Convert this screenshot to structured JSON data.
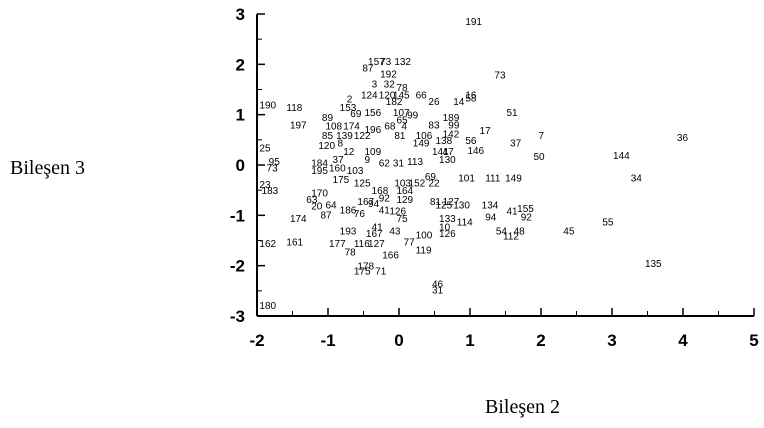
{
  "chart_data": {
    "type": "scatter",
    "title": "",
    "xlabel": "Bileşen 2",
    "ylabel": "Bileşen 3",
    "xlim": [
      -2,
      5
    ],
    "ylim": [
      -3,
      3
    ],
    "xticks": [
      "-2",
      "-1",
      "0",
      "1",
      "2",
      "3",
      "4",
      "5"
    ],
    "yticks": [
      "-3",
      "-2",
      "-1",
      "0",
      "1",
      "2",
      "3"
    ],
    "grid": false,
    "legend": "none",
    "points": [
      {
        "label": "191",
        "x": 0.92,
        "y": 2.86
      },
      {
        "label": "157",
        "x": -0.45,
        "y": 2.07
      },
      {
        "label": "73",
        "x": -0.28,
        "y": 2.07
      },
      {
        "label": "132",
        "x": -0.08,
        "y": 2.07
      },
      {
        "label": "87",
        "x": -0.53,
        "y": 1.94
      },
      {
        "label": "192",
        "x": -0.28,
        "y": 1.82
      },
      {
        "label": "73",
        "x": 1.33,
        "y": 1.8
      },
      {
        "label": "3",
        "x": -0.4,
        "y": 1.62
      },
      {
        "label": "32",
        "x": -0.23,
        "y": 1.62
      },
      {
        "label": "78",
        "x": -0.05,
        "y": 1.55
      },
      {
        "label": "124",
        "x": -0.55,
        "y": 1.4
      },
      {
        "label": "120",
        "x": -0.3,
        "y": 1.4
      },
      {
        "label": "145",
        "x": -0.1,
        "y": 1.4
      },
      {
        "label": "66",
        "x": 0.22,
        "y": 1.4
      },
      {
        "label": "2",
        "x": -0.75,
        "y": 1.32
      },
      {
        "label": "182",
        "x": -0.2,
        "y": 1.27
      },
      {
        "label": "26",
        "x": 0.4,
        "y": 1.27
      },
      {
        "label": "14",
        "x": 0.75,
        "y": 1.27
      },
      {
        "label": "16",
        "x": 0.92,
        "y": 1.4
      },
      {
        "label": "58",
        "x": 0.92,
        "y": 1.34
      },
      {
        "label": "190",
        "x": -1.98,
        "y": 1.2
      },
      {
        "label": "118",
        "x": -1.6,
        "y": 1.15
      },
      {
        "label": "153",
        "x": -0.85,
        "y": 1.15
      },
      {
        "label": "156",
        "x": -0.5,
        "y": 1.05
      },
      {
        "label": "69",
        "x": -0.7,
        "y": 1.03
      },
      {
        "label": "107",
        "x": -0.1,
        "y": 1.05
      },
      {
        "label": "51",
        "x": 1.5,
        "y": 1.05
      },
      {
        "label": "89",
        "x": -1.1,
        "y": 0.95
      },
      {
        "label": "99",
        "x": 0.1,
        "y": 1.0
      },
      {
        "label": "189",
        "x": 0.6,
        "y": 0.95
      },
      {
        "label": "65",
        "x": -0.05,
        "y": 0.9
      },
      {
        "label": "83",
        "x": 0.4,
        "y": 0.8
      },
      {
        "label": "99",
        "x": 0.68,
        "y": 0.8
      },
      {
        "label": "197",
        "x": -1.55,
        "y": 0.8
      },
      {
        "label": "108",
        "x": -1.05,
        "y": 0.78
      },
      {
        "label": "174",
        "x": -0.8,
        "y": 0.78
      },
      {
        "label": "196",
        "x": -0.5,
        "y": 0.72
      },
      {
        "label": "68",
        "x": -0.22,
        "y": 0.78
      },
      {
        "label": "4",
        "x": 0.02,
        "y": 0.78
      },
      {
        "label": "17",
        "x": 1.12,
        "y": 0.7
      },
      {
        "label": "7",
        "x": 1.95,
        "y": 0.6
      },
      {
        "label": "36",
        "x": 3.9,
        "y": 0.56
      },
      {
        "label": "85",
        "x": -1.1,
        "y": 0.6
      },
      {
        "label": "139",
        "x": -0.9,
        "y": 0.6
      },
      {
        "label": "122",
        "x": -0.65,
        "y": 0.6
      },
      {
        "label": "81",
        "x": -0.08,
        "y": 0.6
      },
      {
        "label": "106",
        "x": 0.22,
        "y": 0.6
      },
      {
        "label": "142",
        "x": 0.6,
        "y": 0.63
      },
      {
        "label": "138",
        "x": 0.5,
        "y": 0.5
      },
      {
        "label": "56",
        "x": 0.92,
        "y": 0.5
      },
      {
        "label": "37",
        "x": 1.55,
        "y": 0.45
      },
      {
        "label": "120",
        "x": -1.15,
        "y": 0.4
      },
      {
        "label": "8",
        "x": -0.88,
        "y": 0.45
      },
      {
        "label": "149",
        "x": 0.18,
        "y": 0.45
      },
      {
        "label": "25",
        "x": -1.98,
        "y": 0.35
      },
      {
        "label": "12",
        "x": -0.8,
        "y": 0.28
      },
      {
        "label": "109",
        "x": -0.5,
        "y": 0.28
      },
      {
        "label": "146",
        "x": 0.95,
        "y": 0.3
      },
      {
        "label": "141",
        "x": 0.45,
        "y": 0.28
      },
      {
        "label": "47",
        "x": 0.6,
        "y": 0.28
      },
      {
        "label": "50",
        "x": 1.88,
        "y": 0.18
      },
      {
        "label": "144",
        "x": 3.0,
        "y": 0.2
      },
      {
        "label": "95",
        "x": -1.85,
        "y": 0.08
      },
      {
        "label": "184",
        "x": -1.25,
        "y": 0.05
      },
      {
        "label": "37",
        "x": -0.95,
        "y": 0.12
      },
      {
        "label": "9",
        "x": -0.5,
        "y": 0.12
      },
      {
        "label": "62",
        "x": -0.3,
        "y": 0.05
      },
      {
        "label": "31",
        "x": -0.1,
        "y": 0.05
      },
      {
        "label": "113",
        "x": 0.1,
        "y": 0.08
      },
      {
        "label": "130",
        "x": 0.55,
        "y": 0.12
      },
      {
        "label": "73",
        "x": -1.88,
        "y": -0.05
      },
      {
        "label": "195",
        "x": -1.25,
        "y": -0.1
      },
      {
        "label": "160",
        "x": -1.0,
        "y": -0.05
      },
      {
        "label": "103",
        "x": -0.75,
        "y": -0.1
      },
      {
        "label": "69",
        "x": 0.35,
        "y": -0.22
      },
      {
        "label": "101",
        "x": 0.82,
        "y": -0.25
      },
      {
        "label": "111",
        "x": 1.2,
        "y": -0.25
      },
      {
        "label": "149",
        "x": 1.48,
        "y": -0.25
      },
      {
        "label": "34",
        "x": 3.25,
        "y": -0.25
      },
      {
        "label": "23",
        "x": -1.98,
        "y": -0.38
      },
      {
        "label": "183",
        "x": -1.95,
        "y": -0.5
      },
      {
        "label": "175",
        "x": -0.95,
        "y": -0.28
      },
      {
        "label": "125",
        "x": -0.65,
        "y": -0.35
      },
      {
        "label": "103",
        "x": -0.08,
        "y": -0.35
      },
      {
        "label": "152",
        "x": 0.12,
        "y": -0.35
      },
      {
        "label": "22",
        "x": 0.4,
        "y": -0.35
      },
      {
        "label": "168",
        "x": -0.4,
        "y": -0.5
      },
      {
        "label": "164",
        "x": -0.05,
        "y": -0.5
      },
      {
        "label": "170",
        "x": -1.25,
        "y": -0.55
      },
      {
        "label": "63",
        "x": -1.32,
        "y": -0.68
      },
      {
        "label": "92",
        "x": -0.3,
        "y": -0.65
      },
      {
        "label": "129",
        "x": -0.05,
        "y": -0.68
      },
      {
        "label": "81",
        "x": 0.42,
        "y": -0.72
      },
      {
        "label": "127",
        "x": 0.6,
        "y": -0.72
      },
      {
        "label": "125",
        "x": 0.5,
        "y": -0.78
      },
      {
        "label": "130",
        "x": 0.75,
        "y": -0.78
      },
      {
        "label": "134",
        "x": 1.15,
        "y": -0.78
      },
      {
        "label": "20",
        "x": -1.25,
        "y": -0.8
      },
      {
        "label": "64",
        "x": -1.05,
        "y": -0.78
      },
      {
        "label": "167",
        "x": -0.6,
        "y": -0.72
      },
      {
        "label": "94",
        "x": -0.45,
        "y": -0.75
      },
      {
        "label": "41",
        "x": -0.3,
        "y": -0.88
      },
      {
        "label": "186",
        "x": -0.85,
        "y": -0.88
      },
      {
        "label": "76",
        "x": -0.65,
        "y": -0.95
      },
      {
        "label": "87",
        "x": -1.12,
        "y": -0.98
      },
      {
        "label": "126",
        "x": -0.15,
        "y": -0.9
      },
      {
        "label": "155",
        "x": 1.65,
        "y": -0.85
      },
      {
        "label": "41",
        "x": 1.5,
        "y": -0.9
      },
      {
        "label": "174",
        "x": -1.55,
        "y": -1.05
      },
      {
        "label": "75",
        "x": -0.05,
        "y": -1.05
      },
      {
        "label": "133",
        "x": 0.55,
        "y": -1.05
      },
      {
        "label": "114",
        "x": 0.8,
        "y": -1.12
      },
      {
        "label": "94",
        "x": 1.2,
        "y": -1.02
      },
      {
        "label": "92",
        "x": 1.7,
        "y": -1.02
      },
      {
        "label": "55",
        "x": 2.85,
        "y": -1.12
      },
      {
        "label": "10",
        "x": 0.55,
        "y": -1.22
      },
      {
        "label": "45",
        "x": 2.3,
        "y": -1.3
      },
      {
        "label": "193",
        "x": -0.85,
        "y": -1.3
      },
      {
        "label": "41",
        "x": -0.4,
        "y": -1.22
      },
      {
        "label": "167",
        "x": -0.48,
        "y": -1.35
      },
      {
        "label": "43",
        "x": -0.15,
        "y": -1.3
      },
      {
        "label": "100",
        "x": 0.22,
        "y": -1.38
      },
      {
        "label": "126",
        "x": 0.55,
        "y": -1.35
      },
      {
        "label": "54",
        "x": 1.35,
        "y": -1.3
      },
      {
        "label": "48",
        "x": 1.6,
        "y": -1.3
      },
      {
        "label": "112",
        "x": 1.45,
        "y": -1.4
      },
      {
        "label": "162",
        "x": -1.98,
        "y": -1.55
      },
      {
        "label": "161",
        "x": -1.6,
        "y": -1.52
      },
      {
        "label": "177",
        "x": -1.0,
        "y": -1.55
      },
      {
        "label": "116",
        "x": -0.65,
        "y": -1.55
      },
      {
        "label": "127",
        "x": -0.45,
        "y": -1.55
      },
      {
        "label": "77",
        "x": 0.05,
        "y": -1.52
      },
      {
        "label": "78",
        "x": -0.78,
        "y": -1.72
      },
      {
        "label": "119",
        "x": 0.22,
        "y": -1.68
      },
      {
        "label": "166",
        "x": -0.25,
        "y": -1.78
      },
      {
        "label": "135",
        "x": 3.45,
        "y": -1.95
      },
      {
        "label": "178",
        "x": -0.6,
        "y": -2.0
      },
      {
        "label": "175",
        "x": -0.65,
        "y": -2.1
      },
      {
        "label": "71",
        "x": -0.35,
        "y": -2.1
      },
      {
        "label": "46",
        "x": 0.45,
        "y": -2.35
      },
      {
        "label": "31",
        "x": 0.45,
        "y": -2.47
      },
      {
        "label": "180",
        "x": -1.98,
        "y": -2.78
      }
    ]
  }
}
